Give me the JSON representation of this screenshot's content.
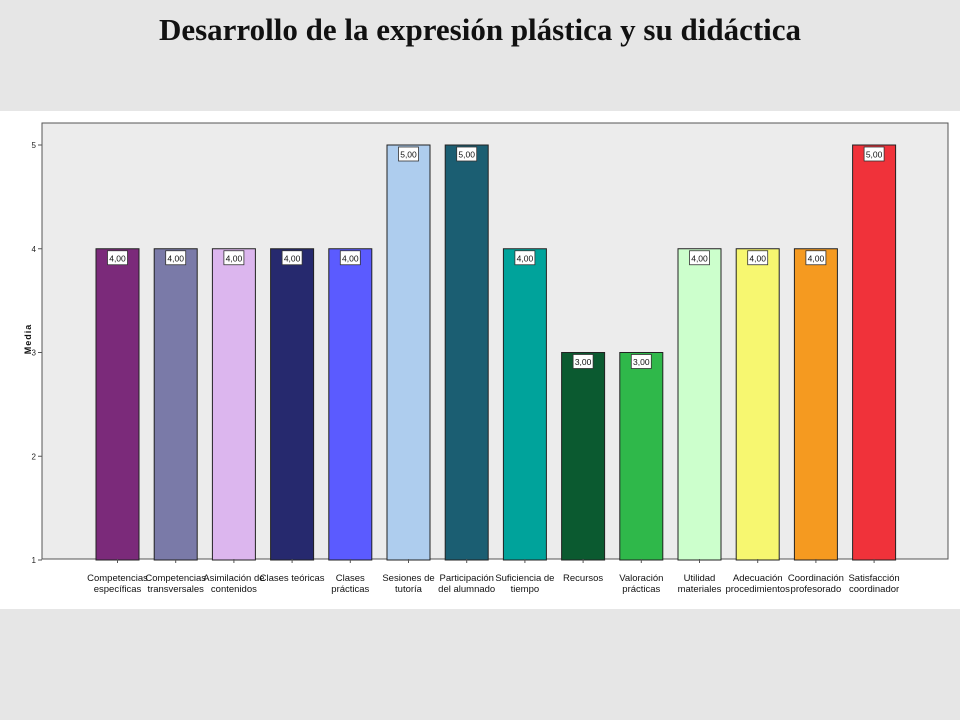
{
  "page": {
    "title": "Desarrollo de la expresión plástica y su didáctica"
  },
  "chart_data": {
    "type": "bar",
    "ylabel": "Media",
    "xlabel": "",
    "ylim": [
      1,
      5
    ],
    "yticks": [
      "1",
      "2",
      "3",
      "4",
      "5"
    ],
    "grid": false,
    "categories": [
      [
        "Competencias",
        "específicas"
      ],
      [
        "Competencias",
        "transversales"
      ],
      [
        "Asimilación de",
        "contenidos"
      ],
      [
        "Clases teóricas"
      ],
      [
        "Clases",
        "prácticas"
      ],
      [
        "Sesiones de",
        "tutoría"
      ],
      [
        "Participación",
        "del alumnado"
      ],
      [
        "Suficiencia de",
        "tiempo"
      ],
      [
        "Recursos"
      ],
      [
        "Valoración",
        "prácticas"
      ],
      [
        "Utilidad",
        "materiales"
      ],
      [
        "Adecuación",
        "procedimientos"
      ],
      [
        "Coordinación",
        "profesorado"
      ],
      [
        "Satisfacción",
        "coordinador"
      ]
    ],
    "values": [
      4,
      4,
      4,
      4,
      4,
      5,
      5,
      4,
      3,
      3,
      4,
      4,
      4,
      5
    ],
    "value_labels": [
      "4,00",
      "4,00",
      "4,00",
      "4,00",
      "4,00",
      "5,00",
      "5,00",
      "4,00",
      "3,00",
      "3,00",
      "4,00",
      "4,00",
      "4,00",
      "5,00"
    ],
    "colors": [
      "#7b2a7a",
      "#7a7aa8",
      "#dcb6ee",
      "#26296e",
      "#5b5bff",
      "#aecdee",
      "#1b5e72",
      "#00a39b",
      "#0b5a30",
      "#2fb84a",
      "#ccffcc",
      "#f7f770",
      "#f59a20",
      "#f0323a"
    ]
  }
}
